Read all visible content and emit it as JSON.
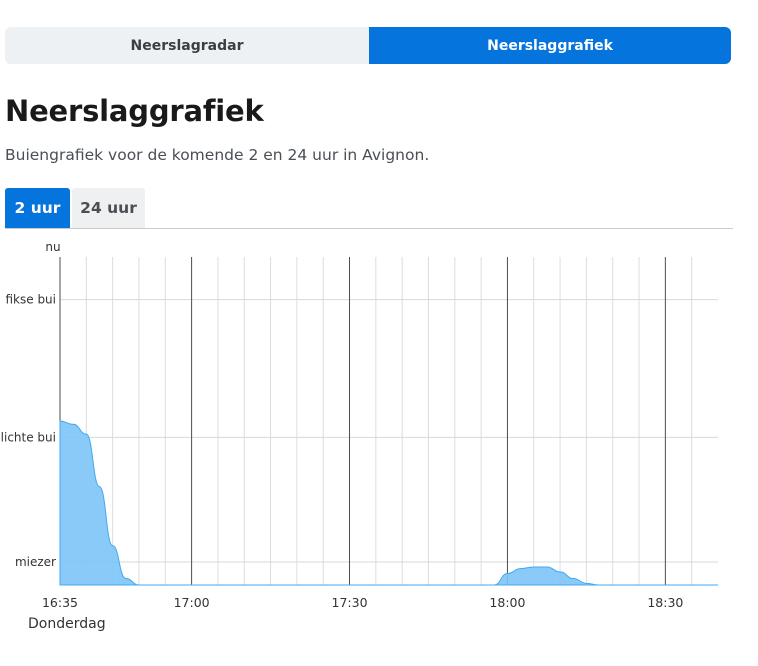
{
  "segment": {
    "left_label": "Neerslagradar",
    "right_label": "Neerslaggrafiek"
  },
  "page": {
    "title": "Neerslaggrafiek",
    "subtitle": "Buiengrafiek voor de komende 2 en 24 uur in Avignon."
  },
  "tabs": [
    {
      "label": "2 uur",
      "active": true
    },
    {
      "label": "24 uur",
      "active": false
    }
  ],
  "colors": {
    "accent": "#0574dc",
    "area_fill": "#7cc4f8",
    "area_stroke": "#43a8f0"
  },
  "chart_data": {
    "type": "area",
    "top_label": "nu",
    "y_levels": [
      "miezer",
      "lichte bui",
      "fikse bui"
    ],
    "ylim": [
      0,
      1
    ],
    "level_values": [
      0.07,
      0.45,
      0.87
    ],
    "x_ticks": [
      "16:35",
      "17:00",
      "17:30",
      "18:00",
      "18:30"
    ],
    "x_tick_minutes": [
      0,
      25,
      55,
      85,
      115
    ],
    "xlim_minutes": [
      0,
      125
    ],
    "day_label": "Donderdag",
    "grid": true,
    "series": [
      {
        "x_minutes": [
          0,
          2.5,
          5,
          7.5,
          10,
          12.5,
          15,
          17.5,
          20,
          22.5,
          25,
          27.5,
          30,
          32.5,
          35,
          37.5,
          40,
          42.5,
          45,
          47.5,
          50,
          52.5,
          55,
          57.5,
          60,
          62.5,
          65,
          67.5,
          70,
          72.5,
          75,
          77.5,
          80,
          82.5,
          85,
          87.5,
          90,
          92.5,
          95,
          97.5,
          100,
          102.5,
          105,
          107.5,
          110,
          112.5,
          115,
          117.5,
          120,
          122.5,
          125
        ],
        "values": [
          0.5,
          0.49,
          0.46,
          0.3,
          0.12,
          0.02,
          0.0,
          0.0,
          0.0,
          0.0,
          0.0,
          0.0,
          0.0,
          0.0,
          0.0,
          0.0,
          0.0,
          0.0,
          0.0,
          0.0,
          0.0,
          0.0,
          0.0,
          0.0,
          0.0,
          0.0,
          0.0,
          0.0,
          0.0,
          0.0,
          0.0,
          0.0,
          0.0,
          0.0,
          0.035,
          0.05,
          0.055,
          0.055,
          0.04,
          0.02,
          0.005,
          0.0,
          0.0,
          0.0,
          0.0,
          0.0,
          0.0,
          0.0,
          0.0,
          0.0,
          0.0
        ]
      }
    ]
  }
}
